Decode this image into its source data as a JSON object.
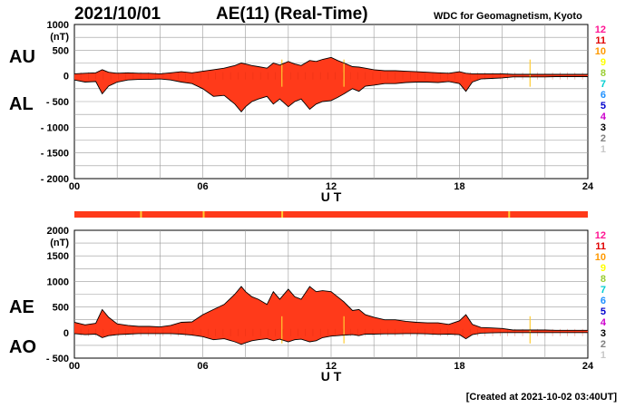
{
  "header": {
    "date": "2021/10/01",
    "title": "AE(11) (Real-Time)",
    "source": "WDC for Geomagnetism, Kyoto"
  },
  "footer": {
    "created": "[Created at 2021-10-02 03:40UT]"
  },
  "colors": {
    "fill_main": "#ff3a1a",
    "fill_highlight": "#ffcc33",
    "outline": "#000000",
    "grid": "#9a9a9a",
    "strip": "#ff3a1a"
  },
  "station_legend": [
    {
      "label": "12",
      "color": "#ff1493"
    },
    {
      "label": "11",
      "color": "#e00000"
    },
    {
      "label": "10",
      "color": "#ff9900"
    },
    {
      "label": "9",
      "color": "#ffff00"
    },
    {
      "label": "8",
      "color": "#9acd32"
    },
    {
      "label": "7",
      "color": "#00ced1"
    },
    {
      "label": "6",
      "color": "#1e90ff"
    },
    {
      "label": "5",
      "color": "#0000cd"
    },
    {
      "label": "4",
      "color": "#cc00cc"
    },
    {
      "label": "3",
      "color": "#000000"
    },
    {
      "label": "2",
      "color": "#808080"
    },
    {
      "label": "1",
      "color": "#c8c8c8"
    }
  ],
  "chart_data": [
    {
      "type": "area",
      "name": "AU-AL",
      "side_labels": [
        "AU",
        "AL"
      ],
      "ylabel": "(nT)",
      "xlabel": "U T",
      "xlim": [
        0,
        24
      ],
      "ylim": [
        -2000,
        1000
      ],
      "x_ticks": [
        "00",
        "06",
        "12",
        "18",
        "24"
      ],
      "y_ticks": [
        "1000",
        "500",
        "0",
        "- 500",
        "- 1000",
        "- 1500",
        "- 2000"
      ],
      "x": [
        0,
        0.5,
        1,
        1.3,
        1.6,
        2,
        2.5,
        3,
        3.5,
        4,
        4.5,
        5,
        5.5,
        6,
        6.5,
        7,
        7.5,
        7.8,
        8,
        8.3,
        8.6,
        9,
        9.3,
        9.6,
        10,
        10.3,
        10.6,
        11,
        11.3,
        11.6,
        12,
        12.3,
        12.6,
        13,
        13.3,
        13.6,
        14,
        14.5,
        15,
        15.5,
        16,
        16.5,
        17,
        17.5,
        18,
        18.3,
        18.6,
        19,
        19.5,
        20,
        20.5,
        21,
        21.5,
        22,
        22.5,
        23,
        23.5,
        24
      ],
      "upper": [
        40,
        50,
        60,
        120,
        70,
        50,
        60,
        50,
        50,
        40,
        60,
        80,
        60,
        90,
        120,
        150,
        200,
        250,
        230,
        200,
        180,
        150,
        250,
        210,
        280,
        230,
        200,
        300,
        280,
        320,
        360,
        300,
        250,
        180,
        170,
        150,
        120,
        100,
        100,
        90,
        80,
        70,
        60,
        50,
        80,
        50,
        40,
        40,
        40,
        40,
        30,
        30,
        30,
        30,
        30,
        30,
        30,
        30
      ],
      "lower": [
        -80,
        -120,
        -110,
        -350,
        -200,
        -120,
        -80,
        -70,
        -70,
        -60,
        -80,
        -120,
        -150,
        -250,
        -400,
        -380,
        -550,
        -700,
        -600,
        -500,
        -450,
        -400,
        -550,
        -450,
        -600,
        -500,
        -450,
        -650,
        -550,
        -500,
        -480,
        -420,
        -350,
        -250,
        -300,
        -200,
        -180,
        -150,
        -150,
        -130,
        -120,
        -120,
        -130,
        -110,
        -150,
        -300,
        -120,
        -60,
        -50,
        -40,
        -20,
        -20,
        -20,
        -20,
        -15,
        -15,
        -15,
        -15
      ]
    },
    {
      "type": "area",
      "name": "AE-AO",
      "side_labels": [
        "AE",
        "AO"
      ],
      "ylabel": "(nT)",
      "xlabel": "U T",
      "xlim": [
        0,
        24
      ],
      "ylim": [
        -500,
        2000
      ],
      "x_ticks": [
        "00",
        "06",
        "12",
        "18",
        "24"
      ],
      "y_ticks": [
        "2000",
        "1500",
        "1000",
        "500",
        "0",
        "- 500"
      ],
      "x": [
        0,
        0.5,
        1,
        1.3,
        1.6,
        2,
        2.5,
        3,
        3.5,
        4,
        4.5,
        5,
        5.5,
        6,
        6.5,
        7,
        7.5,
        7.8,
        8,
        8.3,
        8.6,
        9,
        9.3,
        9.6,
        10,
        10.3,
        10.6,
        11,
        11.3,
        11.6,
        12,
        12.3,
        12.6,
        13,
        13.3,
        13.6,
        14,
        14.5,
        15,
        15.5,
        16,
        16.5,
        17,
        17.5,
        18,
        18.3,
        18.6,
        19,
        19.5,
        20,
        20.5,
        21,
        21.5,
        22,
        22.5,
        23,
        23.5,
        24
      ],
      "upper": [
        200,
        150,
        180,
        450,
        300,
        170,
        140,
        120,
        120,
        110,
        140,
        200,
        210,
        350,
        450,
        550,
        750,
        900,
        800,
        700,
        650,
        550,
        800,
        650,
        850,
        700,
        650,
        900,
        800,
        820,
        800,
        700,
        600,
        430,
        450,
        350,
        300,
        250,
        250,
        220,
        200,
        190,
        190,
        160,
        230,
        350,
        160,
        100,
        90,
        80,
        50,
        50,
        50,
        50,
        45,
        45,
        45,
        45
      ],
      "lower": [
        -20,
        -40,
        -30,
        -100,
        -60,
        -40,
        -30,
        -20,
        -20,
        -20,
        -20,
        -30,
        -50,
        -80,
        -140,
        -120,
        -180,
        -230,
        -200,
        -160,
        -140,
        -120,
        -160,
        -130,
        -180,
        -140,
        -130,
        -180,
        -160,
        -100,
        -70,
        -60,
        -50,
        -40,
        -60,
        -30,
        -30,
        -25,
        -25,
        -20,
        -20,
        -25,
        -35,
        -30,
        -40,
        -120,
        -40,
        -10,
        -5,
        0,
        0,
        0,
        0,
        0,
        0,
        0,
        0,
        0
      ]
    }
  ]
}
